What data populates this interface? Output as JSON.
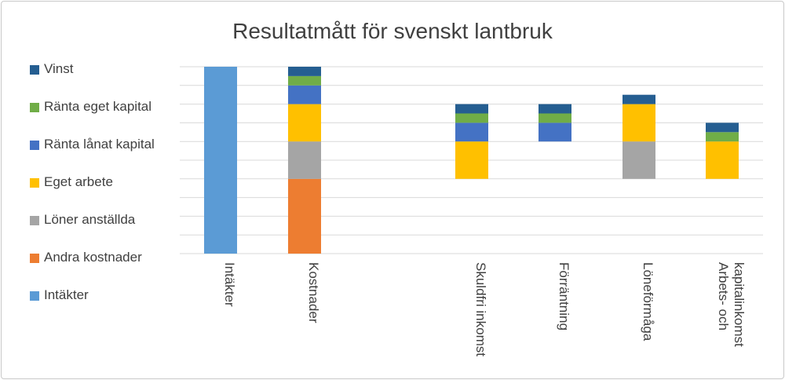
{
  "chart_data": {
    "type": "bar",
    "stacked": true,
    "title": "Resultatmått för svenskt lantbruk",
    "xlabel": "",
    "ylabel": "",
    "ylim": [
      0,
      10
    ],
    "grid": true,
    "legend_position": "left",
    "categories": [
      [
        "Intäkter"
      ],
      [
        "Kostnader"
      ],
      [
        "Skuldfri inkomst"
      ],
      [
        "Förräntning"
      ],
      [
        "Löneförmåga"
      ],
      [
        "Arbets- och",
        "kapitalinkomst"
      ]
    ],
    "series": [
      {
        "name": "Intäkter",
        "color": "#5b9bd5",
        "values": [
          10,
          0,
          0,
          0,
          0,
          0
        ]
      },
      {
        "name": "Andra kostnader",
        "color": "#ed7d31",
        "values": [
          0,
          4,
          0,
          0,
          0,
          0
        ]
      },
      {
        "name": "Löner anställda",
        "color": "#a5a5a5",
        "values": [
          0,
          2,
          0,
          0,
          2,
          0
        ]
      },
      {
        "name": "Eget arbete",
        "color": "#ffc000",
        "values": [
          0,
          2,
          2,
          0,
          2,
          2
        ]
      },
      {
        "name": "Ränta lånat kapital",
        "color": "#4472c4",
        "values": [
          0,
          1,
          1,
          1,
          0,
          0
        ]
      },
      {
        "name": "Ränta eget kapital",
        "color": "#70ad47",
        "values": [
          0,
          0.5,
          0.5,
          0.5,
          0,
          0.5
        ]
      },
      {
        "name": "Vinst",
        "color": "#255e91",
        "values": [
          0,
          0.5,
          0.5,
          0.5,
          0.5,
          0.5
        ]
      }
    ],
    "bar_base": [
      0,
      0,
      4,
      6,
      4,
      4
    ],
    "gridline_color": "#d9d9d9"
  },
  "legend_order": [
    "Vinst",
    "Ränta eget kapital",
    "Ränta lånat kapital",
    "Eget arbete",
    "Löner anställda",
    "Andra kostnader",
    "Intäkter"
  ]
}
